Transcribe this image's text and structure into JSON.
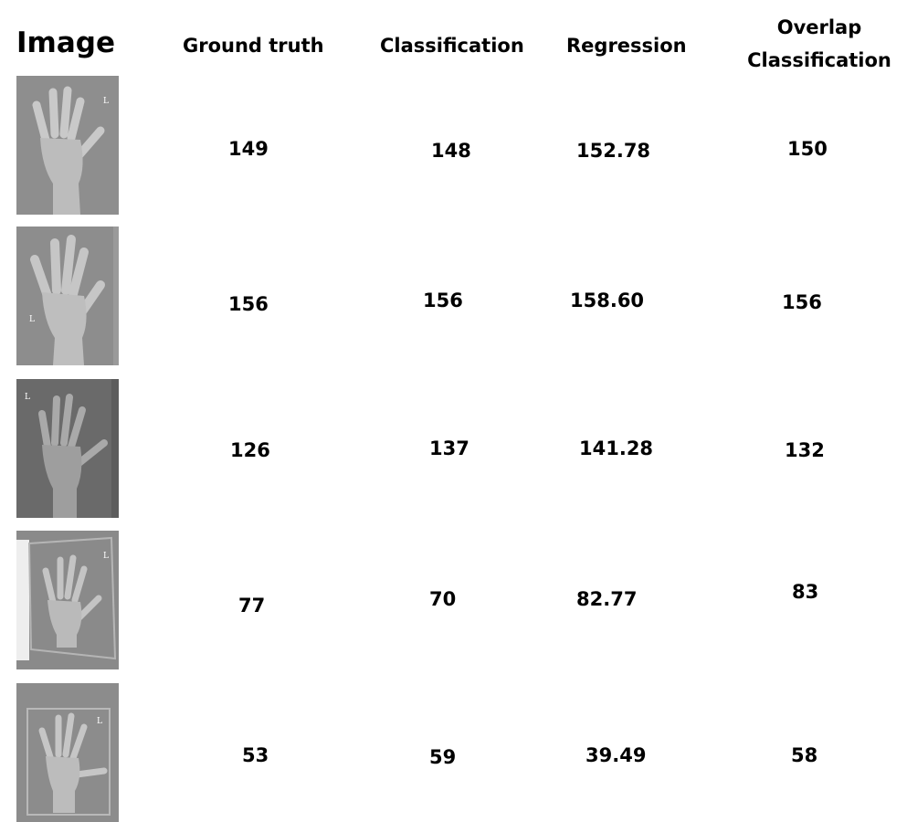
{
  "headers": {
    "image": "Image",
    "ground_truth": "Ground truth",
    "classification": "Classification",
    "regression": "Regression",
    "overlap_line1": "Overlap",
    "overlap_line2": "Classification"
  },
  "rows": [
    {
      "marker": "L",
      "ground_truth": "149",
      "classification": "148",
      "regression": "152.78",
      "overlap": "150"
    },
    {
      "marker": "L",
      "ground_truth": "156",
      "classification": "156",
      "regression": "158.60",
      "overlap": "156"
    },
    {
      "marker": "L",
      "ground_truth": "126",
      "classification": "137",
      "regression": "141.28",
      "overlap": "132"
    },
    {
      "marker": "L",
      "ground_truth": "77",
      "classification": "70",
      "regression": "82.77",
      "overlap": "83"
    },
    {
      "marker": "L",
      "ground_truth": "53",
      "classification": "59",
      "regression": "39.49",
      "overlap": "58"
    }
  ]
}
